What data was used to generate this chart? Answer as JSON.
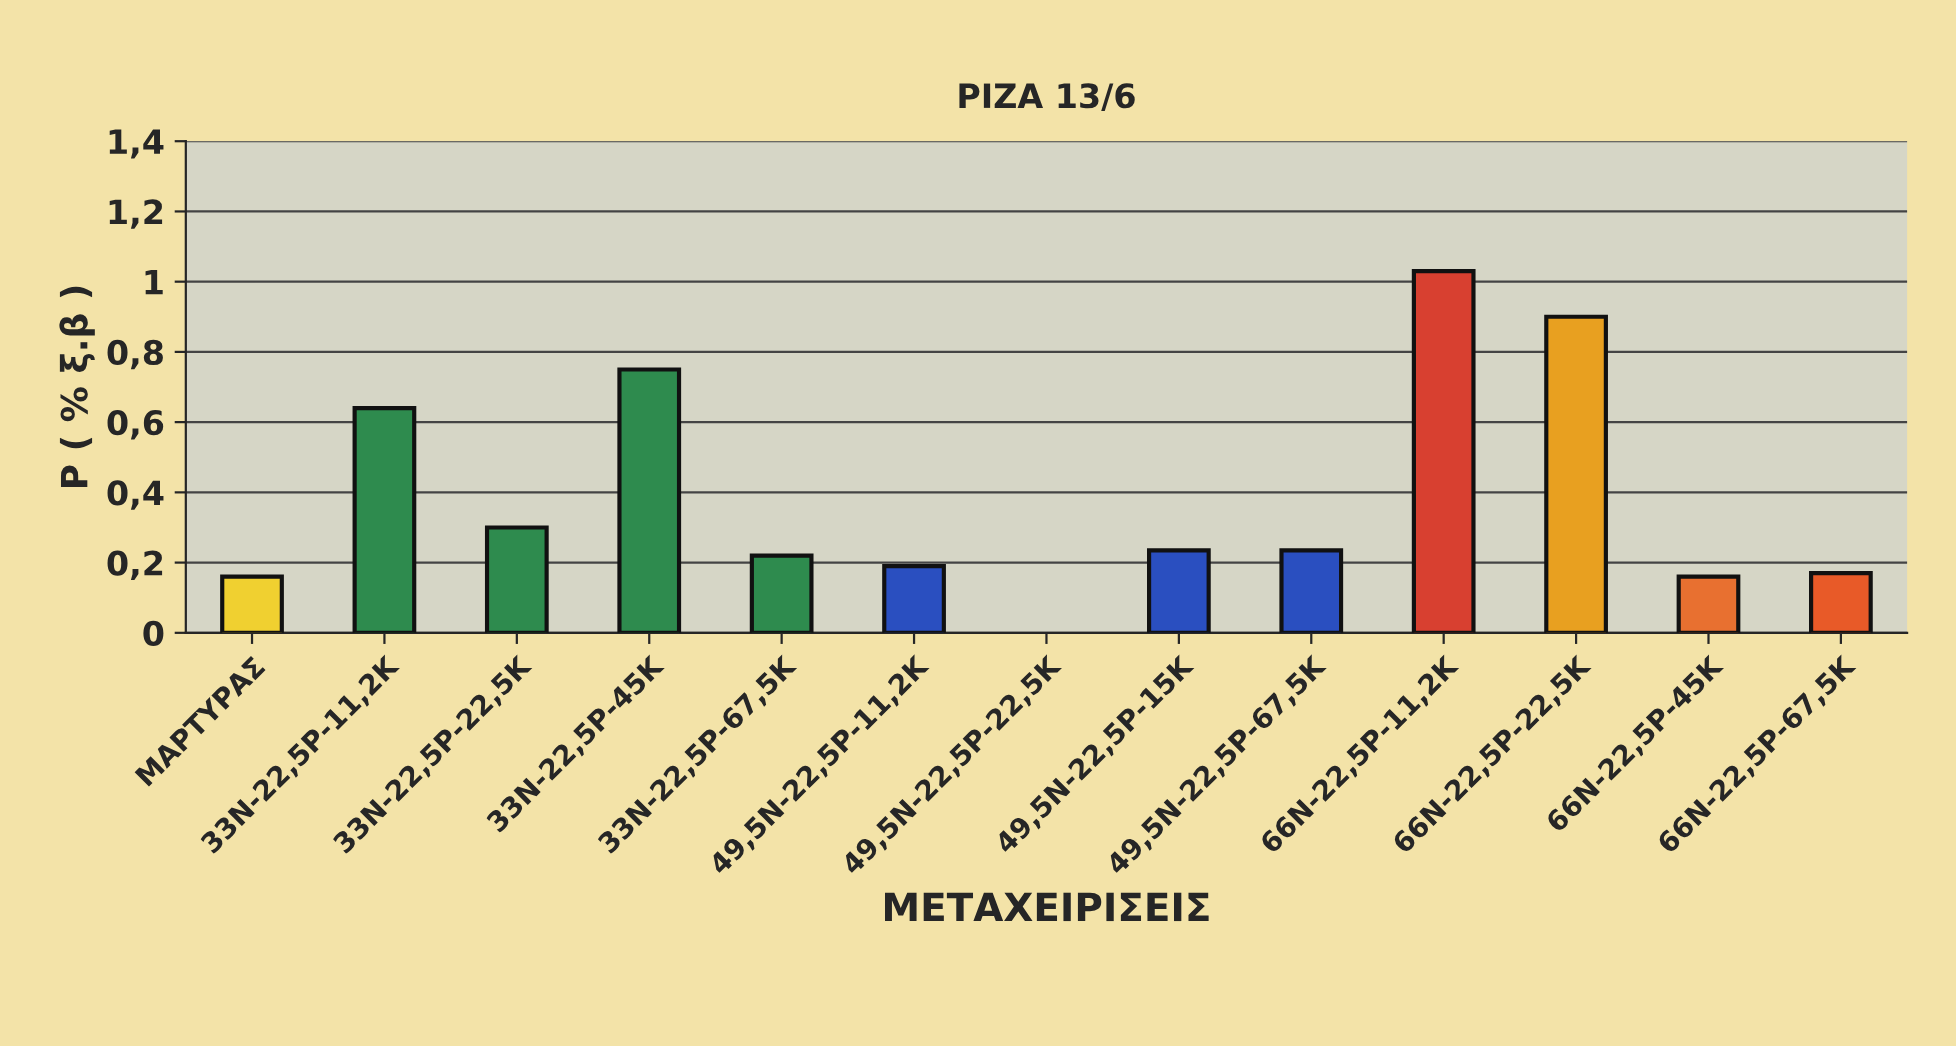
{
  "chart_data": {
    "type": "bar",
    "title": "ΡΙΖΑ 13/6",
    "xlabel": "ΜΕΤΑΧΕΙΡΙΣΕΙΣ",
    "ylabel": "Ρ ( % ξ.β )",
    "categories": [
      "ΜΑΡΤΥΡΑΣ",
      "33Ν-22,5Ρ-11,2Κ",
      "33Ν-22,5Ρ-22,5Κ",
      "33Ν-22,5Ρ-45Κ",
      "33Ν-22,5Ρ-67,5Κ",
      "49,5Ν-22,5Ρ-11,2Κ",
      "49,5Ν-22,5Ρ-22,5Κ",
      "49,5Ν-22,5Ρ-15Κ",
      "49,5Ν-22,5Ρ-67,5Κ",
      "66Ν-22,5Ρ-11,2Κ",
      "66Ν-22,5Ρ-22,5Κ",
      "66Ν-22,5Ρ-45Κ",
      "66Ν-22,5Ρ-67,5Κ"
    ],
    "values": [
      0.16,
      0.64,
      0.3,
      0.75,
      0.22,
      0.19,
      null,
      0.235,
      0.235,
      1.03,
      0.9,
      0.16,
      0.17
    ],
    "colors": [
      "#f0d030",
      "#2e8b4e",
      "#2e8b4e",
      "#2e8b4e",
      "#2e8b4e",
      "#2a4fc0",
      "#2a4fc0",
      "#2a4fc0",
      "#2a4fc0",
      "#d84030",
      "#e8a020",
      "#e87030",
      "#e85a28"
    ],
    "ylim": [
      0,
      1.4
    ],
    "yticks": [
      0,
      {
        "value": 0.2,
        "label": "0,2"
      },
      {
        "value": 0.4,
        "label": "0,4"
      },
      {
        "value": 0.6,
        "label": "0,6"
      },
      {
        "value": 0.8,
        "label": "0,8"
      },
      1,
      {
        "value": 1.2,
        "label": "1,2"
      },
      {
        "value": 1.4,
        "label": "1,4"
      }
    ],
    "grid": "y"
  }
}
